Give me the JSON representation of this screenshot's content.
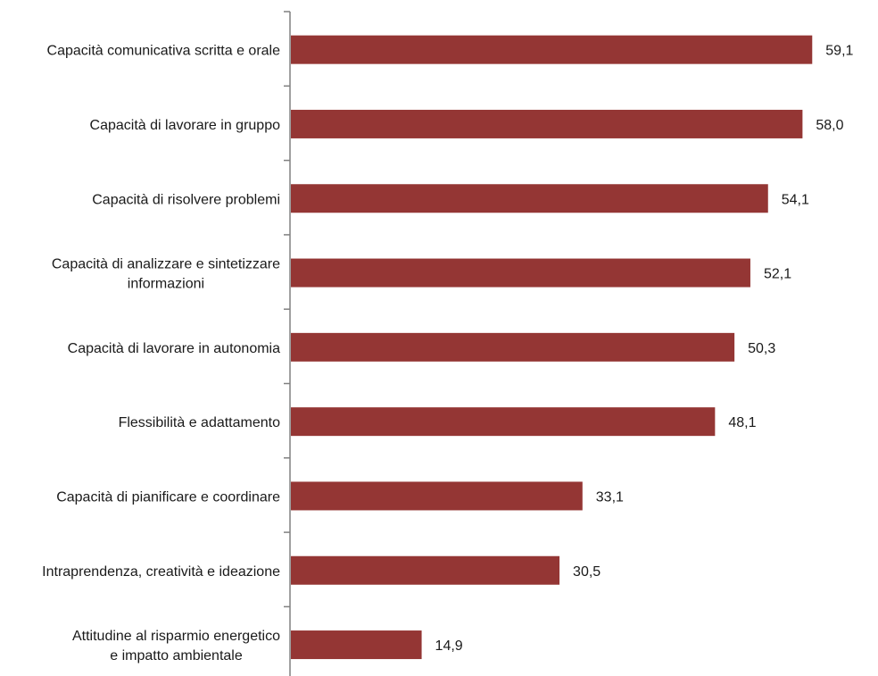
{
  "chart_data": {
    "type": "bar",
    "orientation": "horizontal",
    "title": "",
    "xlabel": "",
    "ylabel": "",
    "xlim": [
      0,
      62
    ],
    "grid": false,
    "legend": "none",
    "bar_color": "#943634",
    "axis_color": "#808080",
    "categories": [
      [
        "Capacità comunicativa scritta e orale"
      ],
      [
        "Capacità di lavorare in gruppo"
      ],
      [
        "Capacità di risolvere problemi"
      ],
      [
        "Capacità di analizzare e sintetizzare",
        "informazioni"
      ],
      [
        "Capacità di lavorare in autonomia"
      ],
      [
        "Flessibilità e adattamento"
      ],
      [
        "Capacità di pianificare e coordinare"
      ],
      [
        "Intraprendenza, creatività e ideazione"
      ],
      [
        "Attitudine al risparmio energetico",
        "e impatto ambientale"
      ]
    ],
    "values": [
      59.1,
      58.0,
      54.1,
      52.1,
      50.3,
      48.1,
      33.1,
      30.5,
      14.9
    ],
    "value_labels": [
      "59,1",
      "58,0",
      "54,1",
      "52,1",
      "50,3",
      "48,1",
      "33,1",
      "30,5",
      "14,9"
    ]
  }
}
